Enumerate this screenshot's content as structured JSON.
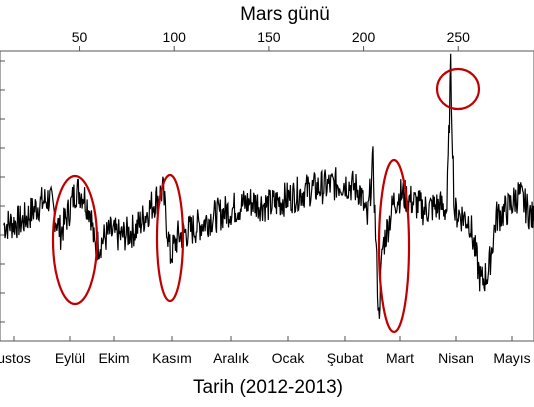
{
  "chart_data": {
    "type": "line",
    "title": "",
    "xlabel": "Tarih (2012-2013)",
    "ylabel": "",
    "top_axis": {
      "label": "Mars günü",
      "ticks": [
        50,
        100,
        150,
        200,
        250
      ]
    },
    "bottom_axis": {
      "ticks": [
        "ustos",
        "Eylül",
        "Ekim",
        "Kasım",
        "Aralık",
        "Ocak",
        "Şubat",
        "Mart",
        "Nisan",
        "Mayıs"
      ]
    },
    "x_range_sol": [
      8,
      290
    ],
    "series": [
      {
        "values_note": "",
        "x_sol": [
          10,
          20,
          28,
          34,
          40,
          44,
          48,
          52,
          56,
          58,
          62,
          66,
          72,
          80,
          88,
          94,
          98,
          102,
          110,
          120,
          130,
          140,
          150,
          160,
          170,
          180,
          190,
          198,
          202,
          205,
          208,
          210,
          212,
          216,
          220,
          226,
          232,
          240,
          244,
          246,
          248,
          250,
          256,
          262,
          266,
          270,
          276,
          282,
          290
        ],
        "y": [
          0.0,
          0.1,
          0.5,
          0.7,
          -0.2,
          0.3,
          0.9,
          0.8,
          0.3,
          -0.6,
          -0.4,
          -0.2,
          -0.3,
          -0.1,
          0.5,
          0.9,
          -0.8,
          -0.3,
          -0.1,
          0.2,
          0.4,
          0.6,
          0.5,
          0.7,
          0.9,
          1.0,
          1.1,
          0.9,
          0.1,
          1.6,
          -2.4,
          -0.6,
          -0.2,
          0.6,
          0.8,
          0.6,
          0.4,
          0.5,
          0.4,
          4.0,
          0.3,
          0.3,
          0.1,
          -1.5,
          -1.2,
          0.2,
          0.4,
          0.8,
          0.1
        ]
      }
    ],
    "ylim": [
      -3,
      4.5
    ],
    "annotations": [
      {
        "shape": "ellipse",
        "around_sol": 48
      },
      {
        "shape": "ellipse",
        "around_sol": 95
      },
      {
        "shape": "ellipse",
        "around_sol": 209
      },
      {
        "shape": "circle",
        "around_sol": 246
      }
    ],
    "colors": {
      "line": "#000000",
      "highlight": "#c00000",
      "frame": "#555555"
    }
  }
}
